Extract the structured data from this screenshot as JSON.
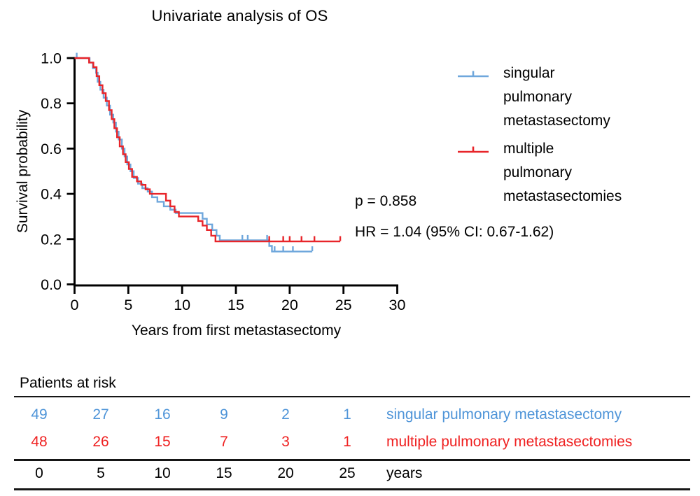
{
  "title": "Univariate analysis of OS",
  "axes": {
    "x_label": "Years from first metastasectomy",
    "y_label": "Survival probability"
  },
  "stats": {
    "p_value": "p = 0.858",
    "hazard_ratio": "HR = 1.04 (95% CI: 0.67-1.62)"
  },
  "legend": {
    "items": [
      {
        "label": "singular\npulmonary\nmetastasectomy",
        "color": "#6FA7DC"
      },
      {
        "label": "multiple\npulmonary\nmetastasectomies",
        "color": "#E8252A"
      }
    ]
  },
  "chart_data": {
    "type": "line",
    "subtype": "kaplan-meier-step",
    "title": "Univariate analysis of OS",
    "xlabel": "Years from first metastasectomy",
    "ylabel": "Survival probability",
    "xlim": [
      0,
      30
    ],
    "ylim": [
      0.0,
      1.0
    ],
    "x_ticks": [
      0,
      5,
      10,
      15,
      20,
      25,
      30
    ],
    "x_tick_labels": [
      "0",
      "5",
      "10",
      "15",
      "20",
      "25",
      "30"
    ],
    "y_ticks": [
      0.0,
      0.2,
      0.4,
      0.6,
      0.8,
      1.0
    ],
    "y_tick_labels": [
      "0.0",
      "0.2",
      "0.4",
      "0.6",
      "0.8",
      "1.0"
    ],
    "grid": false,
    "legend_position": "right",
    "series": [
      {
        "name": "singular pulmonary metastasectomy",
        "color": "#6FA7DC",
        "n_at_start": 49,
        "steps": [
          [
            0,
            1.0
          ],
          [
            1.4,
            0.98
          ],
          [
            1.7,
            0.955
          ],
          [
            2.0,
            0.935
          ],
          [
            2.15,
            0.895
          ],
          [
            2.4,
            0.86
          ],
          [
            2.7,
            0.825
          ],
          [
            3.0,
            0.79
          ],
          [
            3.3,
            0.75
          ],
          [
            3.6,
            0.715
          ],
          [
            3.85,
            0.675
          ],
          [
            4.1,
            0.64
          ],
          [
            4.4,
            0.6
          ],
          [
            4.65,
            0.565
          ],
          [
            4.9,
            0.53
          ],
          [
            5.2,
            0.5
          ],
          [
            5.5,
            0.47
          ],
          [
            5.9,
            0.445
          ],
          [
            6.3,
            0.425
          ],
          [
            6.8,
            0.41
          ],
          [
            7.2,
            0.385
          ],
          [
            7.7,
            0.365
          ],
          [
            8.3,
            0.345
          ],
          [
            8.9,
            0.33
          ],
          [
            9.4,
            0.315
          ],
          [
            11.9,
            0.29
          ],
          [
            12.3,
            0.265
          ],
          [
            12.8,
            0.24
          ],
          [
            13.2,
            0.215
          ],
          [
            13.5,
            0.195
          ],
          [
            18.1,
            0.17
          ],
          [
            18.35,
            0.145
          ]
        ],
        "censors": [
          [
            0.2,
            1.0
          ],
          [
            15.6,
            0.195
          ],
          [
            16.1,
            0.195
          ],
          [
            17.9,
            0.195
          ],
          [
            18.6,
            0.145
          ],
          [
            19.4,
            0.145
          ],
          [
            20.3,
            0.145
          ],
          [
            22.1,
            0.145
          ]
        ],
        "end_x": 22.1
      },
      {
        "name": "multiple pulmonary metastasectomies",
        "color": "#E8252A",
        "n_at_start": 48,
        "steps": [
          [
            0,
            1.0
          ],
          [
            1.35,
            0.98
          ],
          [
            1.75,
            0.96
          ],
          [
            2.05,
            0.92
          ],
          [
            2.3,
            0.88
          ],
          [
            2.6,
            0.845
          ],
          [
            2.9,
            0.81
          ],
          [
            3.2,
            0.77
          ],
          [
            3.45,
            0.73
          ],
          [
            3.7,
            0.69
          ],
          [
            3.95,
            0.65
          ],
          [
            4.2,
            0.61
          ],
          [
            4.5,
            0.575
          ],
          [
            4.75,
            0.54
          ],
          [
            5.05,
            0.51
          ],
          [
            5.35,
            0.475
          ],
          [
            5.8,
            0.455
          ],
          [
            6.2,
            0.44
          ],
          [
            6.6,
            0.42
          ],
          [
            7.0,
            0.4
          ],
          [
            8.5,
            0.37
          ],
          [
            8.9,
            0.345
          ],
          [
            9.3,
            0.32
          ],
          [
            9.7,
            0.3
          ],
          [
            11.5,
            0.28
          ],
          [
            11.9,
            0.26
          ],
          [
            12.3,
            0.24
          ],
          [
            12.7,
            0.215
          ],
          [
            13.1,
            0.19
          ]
        ],
        "censors": [
          [
            18.1,
            0.19
          ],
          [
            19.4,
            0.19
          ],
          [
            20.0,
            0.19
          ],
          [
            21.1,
            0.19
          ],
          [
            22.3,
            0.19
          ],
          [
            24.7,
            0.19
          ]
        ],
        "end_x": 24.7
      }
    ]
  },
  "risk_table": {
    "header": "Patients at risk",
    "time_points": [
      "0",
      "5",
      "10",
      "15",
      "20",
      "25"
    ],
    "time_unit_label": "years",
    "rows": [
      {
        "label": "singular pulmonary metastasectomy",
        "color": "#4E94D8",
        "counts": [
          "49",
          "27",
          "16",
          "9",
          "2",
          "1"
        ]
      },
      {
        "label": "multiple pulmonary metastasectomies",
        "color": "#EF2121",
        "counts": [
          "48",
          "26",
          "15",
          "7",
          "3",
          "1"
        ]
      }
    ]
  }
}
